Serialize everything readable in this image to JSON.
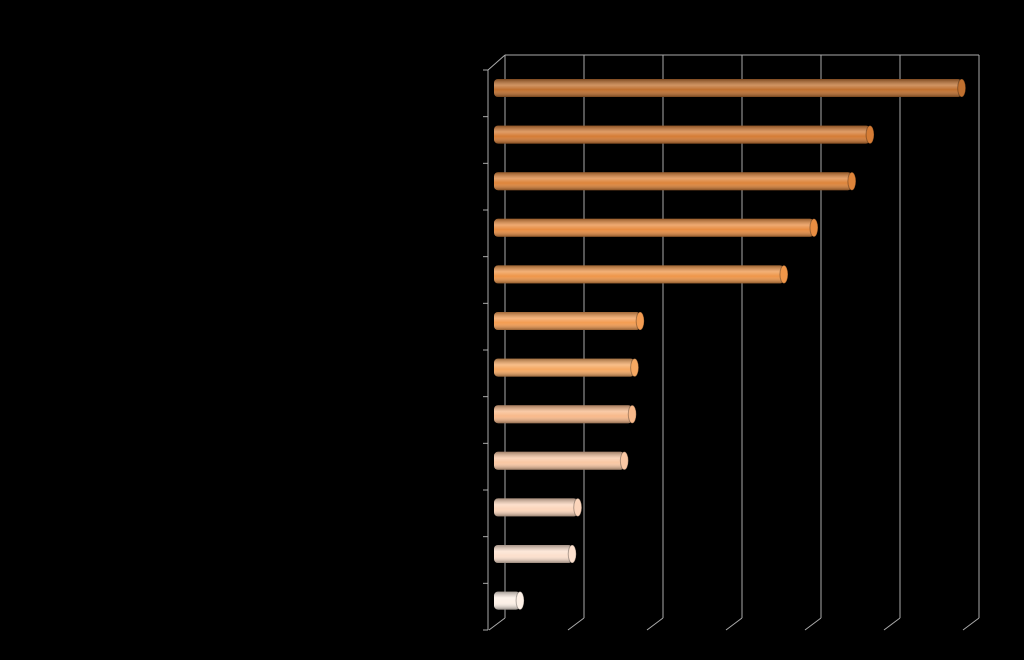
{
  "chart_data": {
    "type": "bar",
    "orientation": "horizontal",
    "style": "3d-cylinder",
    "categories": [
      null,
      null,
      null,
      null,
      null,
      null,
      null,
      null,
      null,
      null,
      null,
      null
    ],
    "values": [
      5.92,
      4.76,
      4.53,
      4.05,
      3.67,
      1.85,
      1.78,
      1.75,
      1.65,
      1.06,
      0.99,
      0.33
    ],
    "colors": [
      "#c0702f",
      "#d57c35",
      "#de843a",
      "#e88d42",
      "#ef9649",
      "#f39c52",
      "#f5a862",
      "#f8b98a",
      "#f9c7a3",
      "#fbd5bb",
      "#fce0cd",
      "#fdf0e6"
    ],
    "xlim": [
      0,
      6
    ],
    "xticks": [
      0,
      1,
      2,
      3,
      4,
      5,
      6
    ],
    "grid": true
  }
}
